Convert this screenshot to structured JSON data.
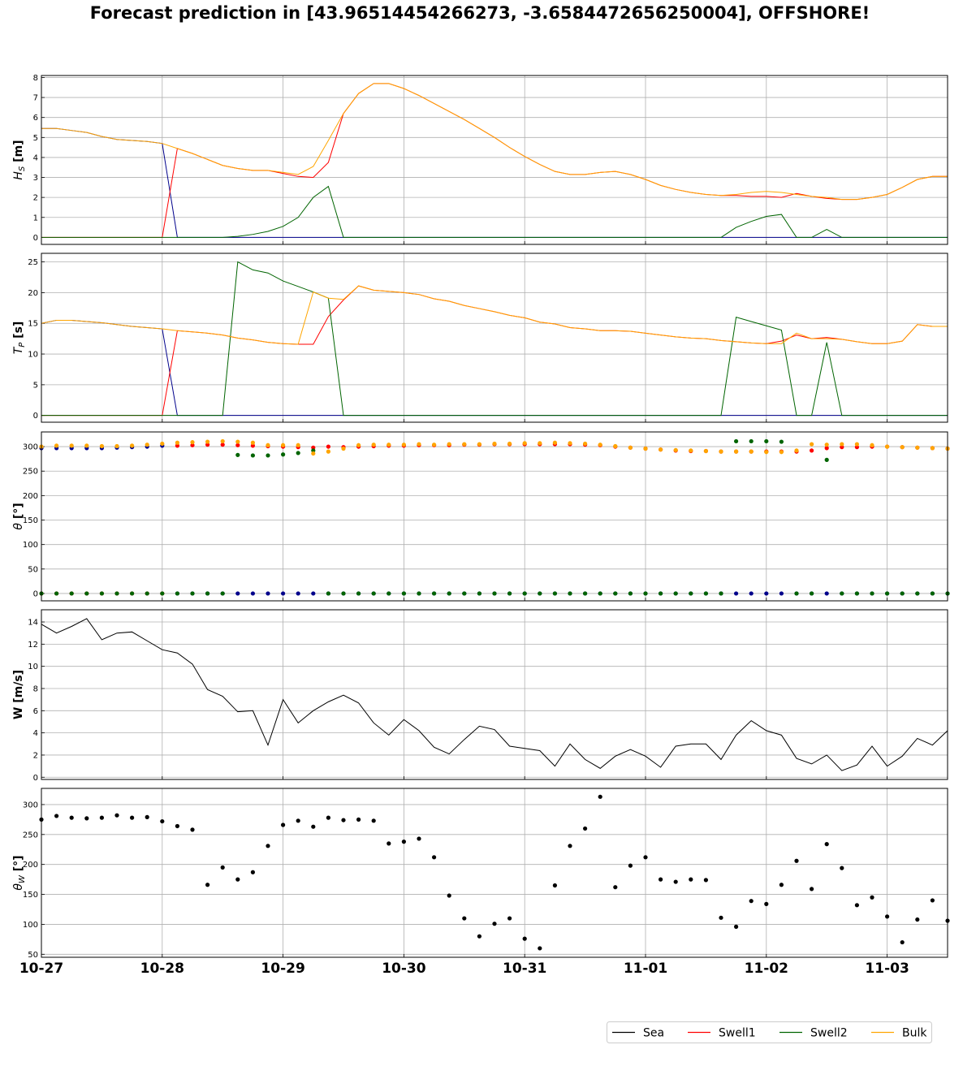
{
  "title": "Forecast prediction in [43.96514454266273, -3.6584472656250004], OFFSHORE!",
  "colors": {
    "sea": "#00008b",
    "swell1": "#ff0000",
    "swell2": "#006400",
    "bulk": "#ffa500",
    "wind": "#000000",
    "legend_sea": "#000000"
  },
  "legend": [
    {
      "name": "Sea",
      "color": "#000000"
    },
    {
      "name": "Swell1",
      "color": "#ff0000"
    },
    {
      "name": "Swell2",
      "color": "#006400"
    },
    {
      "name": "Bulk",
      "color": "#ffa500"
    }
  ],
  "chart_data": [
    {
      "type": "line",
      "ylabel": "H_S [m]",
      "ylim": [
        -0.35,
        8.1
      ],
      "yticks": [
        0,
        1,
        2,
        3,
        4,
        5,
        6,
        7,
        8
      ],
      "x": "step index 0..60 (3-hourly from 10-27 00:00)",
      "series": [
        {
          "name": "Sea",
          "values": [
            5.45,
            5.45,
            5.35,
            5.25,
            5.05,
            4.9,
            4.85,
            4.8,
            4.7,
            0,
            0,
            0,
            0,
            0,
            0,
            0,
            0,
            0,
            0,
            0,
            0,
            0,
            0,
            0,
            0,
            0,
            0,
            0,
            0,
            0,
            0,
            0,
            0,
            0,
            0,
            0,
            0,
            0,
            0,
            0,
            0,
            0,
            0,
            0,
            0,
            0,
            0,
            0,
            0,
            0,
            0,
            0,
            0,
            0,
            0,
            0,
            0,
            0,
            0,
            0,
            0
          ]
        },
        {
          "name": "Swell1",
          "values": [
            0,
            0,
            0,
            0,
            0,
            0,
            0,
            0,
            0,
            4.45,
            4.2,
            3.9,
            3.6,
            3.45,
            3.35,
            3.35,
            3.2,
            3.05,
            3.0,
            3.75,
            6.2,
            7.2,
            7.7,
            7.7,
            7.45,
            7.1,
            6.7,
            6.3,
            5.9,
            5.45,
            5.0,
            4.5,
            4.05,
            3.65,
            3.3,
            3.15,
            3.15,
            3.25,
            3.3,
            3.15,
            2.9,
            2.6,
            2.4,
            2.25,
            2.15,
            2.1,
            2.1,
            2.05,
            2.05,
            2.0,
            2.2,
            2.05,
            1.95,
            1.9,
            1.9,
            2.0,
            2.15,
            2.5,
            2.9,
            3.05,
            3.05
          ]
        },
        {
          "name": "Swell2",
          "values": [
            0,
            0,
            0,
            0,
            0,
            0,
            0,
            0,
            0,
            0,
            0,
            0,
            0,
            0.05,
            0.15,
            0.3,
            0.55,
            1.0,
            2.0,
            2.55,
            0,
            0,
            0,
            0,
            0,
            0,
            0,
            0,
            0,
            0,
            0,
            0,
            0,
            0,
            0,
            0,
            0,
            0,
            0,
            0,
            0,
            0,
            0,
            0,
            0,
            0,
            0.5,
            0.8,
            1.05,
            1.15,
            0,
            0,
            0.4,
            0,
            0,
            0,
            0,
            0,
            0,
            0,
            0
          ]
        },
        {
          "name": "Bulk",
          "values": [
            5.45,
            5.45,
            5.35,
            5.25,
            5.05,
            4.9,
            4.85,
            4.8,
            4.7,
            4.45,
            4.2,
            3.9,
            3.6,
            3.45,
            3.35,
            3.35,
            3.25,
            3.15,
            3.55,
            4.85,
            6.2,
            7.2,
            7.7,
            7.7,
            7.45,
            7.1,
            6.7,
            6.3,
            5.9,
            5.45,
            5.0,
            4.5,
            4.05,
            3.65,
            3.3,
            3.15,
            3.15,
            3.25,
            3.3,
            3.15,
            2.9,
            2.6,
            2.4,
            2.25,
            2.15,
            2.1,
            2.15,
            2.25,
            2.3,
            2.25,
            2.15,
            2.05,
            2.0,
            1.9,
            1.9,
            2.0,
            2.15,
            2.5,
            2.9,
            3.05,
            3.05
          ]
        }
      ]
    },
    {
      "type": "line",
      "ylabel": "T_P [s]",
      "ylim": [
        -1.1,
        26.4
      ],
      "yticks": [
        0,
        5,
        10,
        15,
        20,
        25
      ],
      "series": [
        {
          "name": "Sea",
          "values": [
            15,
            15.5,
            15.5,
            15.3,
            15.1,
            14.8,
            14.5,
            14.3,
            14.1,
            0,
            0,
            0,
            0,
            0,
            0,
            0,
            0,
            0,
            0,
            0,
            0,
            0,
            0,
            0,
            0,
            0,
            0,
            0,
            0,
            0,
            0,
            0,
            0,
            0,
            0,
            0,
            0,
            0,
            0,
            0,
            0,
            0,
            0,
            0,
            0,
            0,
            0,
            0,
            0,
            0,
            0,
            0,
            0,
            0,
            0,
            0,
            0,
            0,
            0,
            0,
            0
          ]
        },
        {
          "name": "Swell1",
          "values": [
            0,
            0,
            0,
            0,
            0,
            0,
            0,
            0,
            0,
            13.8,
            13.6,
            13.4,
            13.1,
            12.6,
            12.3,
            11.9,
            11.7,
            11.6,
            11.6,
            16.1,
            18.8,
            21.1,
            20.4,
            20.2,
            20.0,
            19.7,
            19.0,
            18.6,
            17.9,
            17.4,
            16.9,
            16.3,
            15.9,
            15.2,
            14.9,
            14.3,
            14.1,
            13.8,
            13.8,
            13.7,
            13.4,
            13.1,
            12.8,
            12.6,
            12.5,
            12.2,
            12.0,
            11.8,
            11.7,
            12.1,
            13.1,
            12.5,
            12.7,
            12.4,
            12.0,
            11.7,
            11.7,
            12.1,
            14.8,
            14.5,
            14.5
          ]
        },
        {
          "name": "Swell2",
          "values": [
            0,
            0,
            0,
            0,
            0,
            0,
            0,
            0,
            0,
            0,
            0,
            0,
            0,
            25,
            23.7,
            23.2,
            21.9,
            21.0,
            20.1,
            19.1,
            0,
            0,
            0,
            0,
            0,
            0,
            0,
            0,
            0,
            0,
            0,
            0,
            0,
            0,
            0,
            0,
            0,
            0,
            0,
            0,
            0,
            0,
            0,
            0,
            0,
            0,
            16,
            15.3,
            14.6,
            13.9,
            0,
            0,
            11.9,
            0,
            0,
            0,
            0,
            0,
            0,
            0,
            0
          ]
        },
        {
          "name": "Bulk",
          "values": [
            15,
            15.5,
            15.5,
            15.3,
            15.1,
            14.8,
            14.5,
            14.3,
            14.1,
            13.8,
            13.6,
            13.4,
            13.1,
            12.6,
            12.3,
            11.9,
            11.7,
            11.6,
            20.1,
            19.1,
            18.9,
            21.1,
            20.4,
            20.2,
            20.0,
            19.7,
            19.0,
            18.6,
            17.9,
            17.4,
            16.9,
            16.3,
            15.9,
            15.2,
            14.9,
            14.3,
            14.1,
            13.8,
            13.8,
            13.7,
            13.4,
            13.1,
            12.8,
            12.6,
            12.5,
            12.2,
            12.0,
            11.8,
            11.7,
            11.7,
            13.4,
            12.5,
            12.5,
            12.4,
            12.0,
            11.7,
            11.7,
            12.1,
            14.8,
            14.5,
            14.5
          ]
        }
      ]
    },
    {
      "type": "scatter",
      "ylabel": "θ [°]",
      "ylim": [
        -15,
        330
      ],
      "yticks": [
        0,
        50,
        100,
        150,
        200,
        250,
        300
      ],
      "series": [
        {
          "name": "Sea",
          "values": [
            297,
            297,
            297,
            297,
            297,
            298,
            299,
            300,
            302,
            0,
            0,
            0,
            0,
            0,
            0,
            0,
            0,
            0,
            0,
            0,
            0,
            0,
            0,
            0,
            0,
            0,
            0,
            0,
            0,
            0,
            0,
            0,
            0,
            0,
            0,
            0,
            0,
            0,
            0,
            0,
            0,
            0,
            0,
            0,
            0,
            0,
            0,
            0,
            0,
            0,
            0,
            0,
            0,
            0,
            0,
            0,
            0,
            0,
            0,
            0,
            0
          ]
        },
        {
          "name": "Swell1",
          "values": [
            0,
            0,
            0,
            0,
            0,
            0,
            0,
            0,
            0,
            302,
            303,
            304,
            304,
            303,
            302,
            301,
            300,
            299,
            298,
            300,
            299,
            300,
            301,
            302,
            302,
            303,
            303,
            303,
            304,
            304,
            305,
            305,
            305,
            305,
            305,
            305,
            304,
            303,
            300,
            298,
            296,
            294,
            292,
            291,
            291,
            290,
            290,
            290,
            290,
            290,
            290,
            292,
            297,
            299,
            299,
            300,
            300,
            299,
            298,
            297,
            296
          ]
        },
        {
          "name": "Swell2",
          "values": [
            0,
            0,
            0,
            0,
            0,
            0,
            0,
            0,
            0,
            0,
            0,
            0,
            0,
            283,
            282,
            282,
            284,
            287,
            292,
            0,
            0,
            0,
            0,
            0,
            0,
            0,
            0,
            0,
            0,
            0,
            0,
            0,
            0,
            0,
            0,
            0,
            0,
            0,
            0,
            0,
            0,
            0,
            0,
            0,
            0,
            0,
            311,
            311,
            311,
            310,
            0,
            0,
            273,
            0,
            0,
            0,
            0,
            0,
            0,
            0,
            0
          ]
        },
        {
          "name": "Bulk",
          "values": [
            300,
            302,
            302,
            302,
            301,
            301,
            302,
            304,
            306,
            308,
            309,
            310,
            311,
            310,
            308,
            303,
            303,
            303,
            286,
            290,
            296,
            303,
            304,
            304,
            304,
            305,
            304,
            305,
            305,
            305,
            306,
            306,
            307,
            307,
            308,
            307,
            306,
            304,
            301,
            298,
            296,
            294,
            293,
            292,
            291,
            290,
            290,
            290,
            289,
            289,
            292,
            305,
            304,
            305,
            305,
            303,
            300,
            299,
            298,
            297,
            296
          ]
        }
      ]
    },
    {
      "type": "line",
      "ylabel": "W [m/s]",
      "ylim": [
        -0.2,
        15.1
      ],
      "yticks": [
        0,
        2,
        4,
        6,
        8,
        10,
        12,
        14
      ],
      "series": [
        {
          "name": "Wind",
          "values": [
            13.8,
            13.0,
            13.6,
            14.3,
            12.4,
            13.0,
            13.1,
            12.3,
            11.5,
            11.2,
            10.2,
            7.9,
            7.3,
            5.9,
            6.0,
            2.9,
            7.0,
            4.9,
            6.0,
            6.8,
            7.4,
            6.7,
            4.9,
            3.8,
            5.2,
            4.2,
            2.7,
            2.1,
            3.4,
            4.6,
            4.3,
            2.8,
            2.6,
            2.4,
            1.0,
            3.0,
            1.6,
            0.8,
            1.9,
            2.5,
            1.9,
            0.9,
            2.8,
            3.0,
            3.0,
            1.6,
            3.8,
            5.1,
            4.2,
            3.8,
            1.7,
            1.2,
            2.0,
            0.6,
            1.1,
            2.8,
            1.0,
            1.9,
            3.5,
            2.9,
            4.2
          ]
        }
      ]
    },
    {
      "type": "scatter",
      "ylabel": "θ_W [°]",
      "ylim": [
        45,
        327
      ],
      "yticks": [
        50,
        100,
        150,
        200,
        250,
        300
      ],
      "series": [
        {
          "name": "Wind direction",
          "values": [
            275,
            281,
            278,
            277,
            278,
            282,
            278,
            279,
            272,
            264,
            258,
            166,
            195,
            175,
            187,
            231,
            266,
            273,
            263,
            278,
            274,
            275,
            273,
            235,
            238,
            243,
            212,
            148,
            110,
            80,
            101,
            110,
            76,
            60,
            165,
            231,
            260,
            313,
            162,
            198,
            212,
            175,
            171,
            175,
            174,
            111,
            96,
            139,
            134,
            166,
            206,
            159,
            234,
            194,
            132,
            145,
            113,
            70,
            108,
            140,
            106
          ]
        }
      ]
    }
  ],
  "x_axis": {
    "tick_labels": [
      "10-27",
      "10-28",
      "10-29",
      "10-30",
      "10-31",
      "11-01",
      "11-02",
      "11-03"
    ],
    "steps_per_day": 8
  }
}
